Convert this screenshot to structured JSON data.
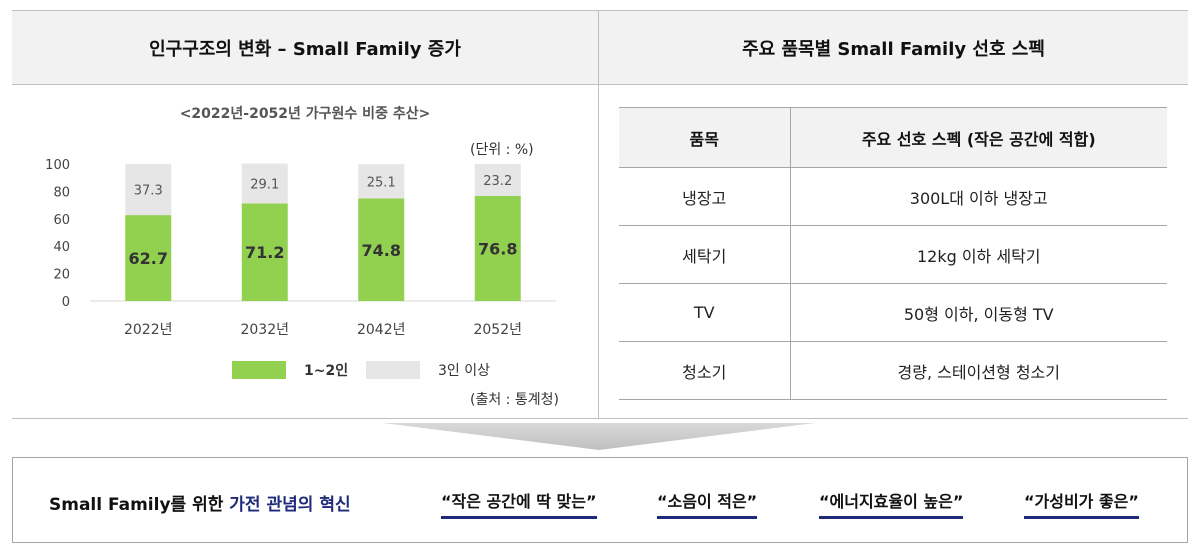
{
  "header": {
    "left_title": "인구구조의 변화 – Small Family 증가",
    "right_title": "주요 품목별 Small Family 선호 스펙"
  },
  "chart_meta": {
    "title": "<2022년-2052년 가구원수 비중 추산>",
    "unit": "(단위 : %)",
    "source": "(출처 : 통계청)"
  },
  "chart_data": {
    "type": "bar",
    "stacked": true,
    "categories": [
      "2022년",
      "2032년",
      "2042년",
      "2052년"
    ],
    "series": [
      {
        "name": "1~2인",
        "values": [
          62.7,
          71.2,
          74.8,
          76.8
        ],
        "color": "#92d050"
      },
      {
        "name": "3인 이상",
        "values": [
          37.3,
          29.1,
          25.1,
          23.2
        ],
        "color": "#e7e6e6"
      }
    ],
    "ylim": [
      0,
      100
    ],
    "yticks": [
      0,
      20,
      40,
      60,
      80,
      100
    ],
    "legend_position": "bottom",
    "grid": false
  },
  "spec_table": {
    "headers": [
      "품목",
      "주요 선호 스펙 (작은 공간에 적합)"
    ],
    "rows": [
      [
        "냉장고",
        "300L대 이하 냉장고"
      ],
      [
        "세탁기",
        "12kg 이하 세탁기"
      ],
      [
        "TV",
        "50형 이하, 이동형 TV"
      ],
      [
        "청소기",
        "경량, 스테이션형 청소기"
      ]
    ]
  },
  "bottom": {
    "label_prefix": "Small Family를 위한 ",
    "label_highlight": "가전 관념의 혁신",
    "quotes": [
      "“작은 공간에 딱 맞는”",
      "“소음이 적은”",
      "“에너지효율이 높은”",
      "“가성비가 좋은”"
    ]
  },
  "colors": {
    "accent_navy": "#1f2a7a",
    "green": "#92d050",
    "light_gray": "#e7e6e6",
    "header_bg": "#f2f2f2"
  }
}
